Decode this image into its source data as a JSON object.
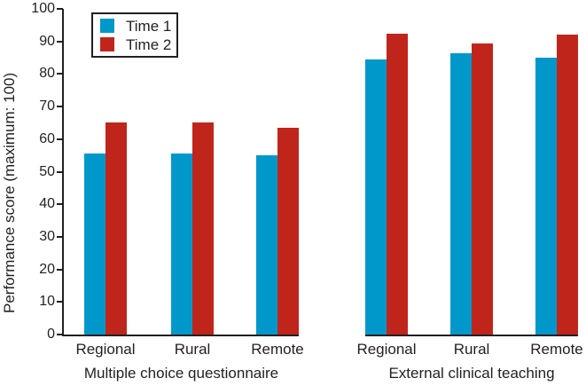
{
  "figure": {
    "background": "#ffffff",
    "ink_color": "#231f20"
  },
  "legend": {
    "items": [
      {
        "label": "Time 1",
        "color": "#0097cb"
      },
      {
        "label": "Time 2",
        "color": "#c0251c"
      }
    ]
  },
  "chart_data": {
    "type": "bar",
    "title": "",
    "xlabel": "",
    "ylabel": "Performance score (maximum: 100)",
    "ylim": [
      0,
      100
    ],
    "y_ticks": [
      0,
      10,
      20,
      30,
      40,
      50,
      60,
      70,
      80,
      90,
      100
    ],
    "grid": false,
    "legend_position": "top-left-inside",
    "series_names": [
      "Time 1",
      "Time 2"
    ],
    "groups": [
      {
        "label": "Multiple choice questionnaire",
        "categories": [
          "Regional",
          "Rural",
          "Remote"
        ],
        "series": [
          {
            "name": "Time 1",
            "color": "#0097cb",
            "values": [
              55.5,
              55.5,
              55
            ]
          },
          {
            "name": "Time 2",
            "color": "#c0251c",
            "values": [
              65,
              65,
              63.5
            ]
          }
        ]
      },
      {
        "label": "External clinical teaching",
        "categories": [
          "Regional",
          "Rural",
          "Remote"
        ],
        "series": [
          {
            "name": "Time 1",
            "color": "#0097cb",
            "values": [
              84.5,
              86.5,
              85
            ]
          },
          {
            "name": "Time 2",
            "color": "#c0251c",
            "values": [
              92.5,
              89.5,
              92
            ]
          }
        ]
      }
    ]
  }
}
